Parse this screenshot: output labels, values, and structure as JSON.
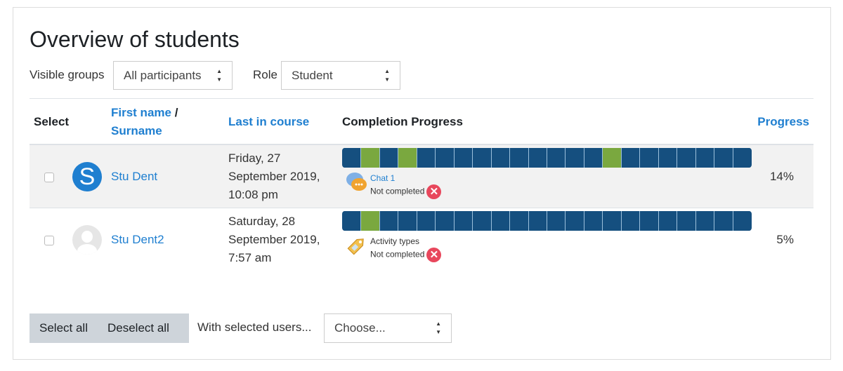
{
  "title": "Overview of students",
  "filters": {
    "groups_label": "Visible groups",
    "groups_value": "All participants",
    "role_label": "Role",
    "role_value": "Student"
  },
  "table": {
    "headers": {
      "select": "Select",
      "first_name": "First name",
      "slash": " /",
      "surname": "Surname",
      "last_in_course": "Last in course",
      "completion_progress": "Completion Progress",
      "progress": "Progress"
    },
    "rows": [
      {
        "name": "Stu Dent",
        "avatar_letter": "S",
        "last_line1": "Friday, 27",
        "last_line2": "September 2019,",
        "last_line3": "10:08 pm",
        "segments_total": 22,
        "completed_segments": [
          1,
          3,
          14
        ],
        "activity": "Chat 1",
        "activity_icon": "chat-icon",
        "status": "Not completed",
        "progress": "14%"
      },
      {
        "name": "Stu Dent2",
        "avatar_letter": "",
        "last_line1": "Saturday, 28",
        "last_line2": "September 2019,",
        "last_line3": "7:57 am",
        "segments_total": 22,
        "completed_segments": [
          1
        ],
        "activity": "Activity types",
        "activity_icon": "label-tag-icon",
        "status": "Not completed",
        "progress": "5%"
      }
    ]
  },
  "footer": {
    "select_all": "Select all",
    "deselect_all": "Deselect all",
    "with_selected": "With selected users...",
    "choose": "Choose..."
  },
  "colors": {
    "incomplete": "#154f7f",
    "complete": "#7aa83f",
    "link": "#1f7fd0",
    "not_completed": "#e8475c"
  }
}
